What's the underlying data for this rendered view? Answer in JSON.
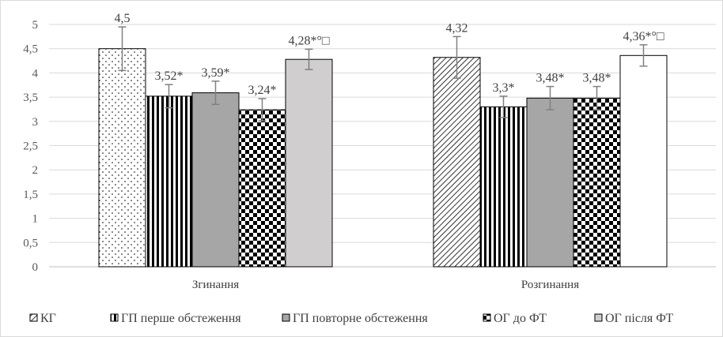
{
  "chart_data": {
    "type": "bar",
    "categories": [
      "Згинання",
      "Розгинання"
    ],
    "ylim": [
      0,
      5
    ],
    "yticks": [
      "0",
      "0,5",
      "1",
      "1,5",
      "2",
      "2,5",
      "3",
      "3,5",
      "4",
      "4,5",
      "5"
    ],
    "grid": true,
    "legend_position": "bottom",
    "series": [
      {
        "name": "КГ",
        "values": [
          4.5,
          4.32
        ],
        "errors": [
          0.45,
          0.43
        ],
        "labels": [
          "4,5",
          "4,32"
        ]
      },
      {
        "name": "ГП перше обстеження",
        "values": [
          3.52,
          3.3
        ],
        "errors": [
          0.24,
          0.22
        ],
        "labels": [
          "3,52*",
          "3,3*"
        ]
      },
      {
        "name": "ГП повторне обстеження",
        "values": [
          3.59,
          3.48
        ],
        "errors": [
          0.24,
          0.24
        ],
        "labels": [
          "3,59*",
          "3,48*"
        ]
      },
      {
        "name": "ОГ до ФТ",
        "values": [
          3.24,
          3.48
        ],
        "errors": [
          0.23,
          0.24
        ],
        "labels": [
          "3,24*",
          "3,48*"
        ]
      },
      {
        "name": "ОГ після ФТ",
        "values": [
          4.28,
          4.36
        ],
        "errors": [
          0.21,
          0.22
        ],
        "labels": [
          "4,28*°□",
          "4,36*°□"
        ]
      }
    ]
  },
  "colors": {
    "grid": "#d9d9d9",
    "axis": "#bfbfbf",
    "bar_border": "#000000",
    "gray_fill": "#a6a6a6",
    "light_gray_fill": "#d0cece",
    "error_bar": "#808080"
  }
}
